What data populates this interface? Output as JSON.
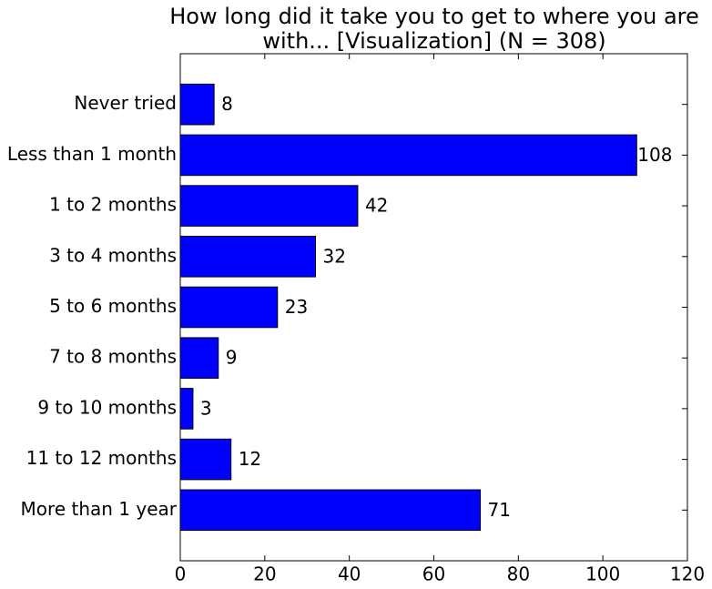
{
  "chart_data": {
    "type": "barh",
    "title": [
      "How long did it take you to get to where you are",
      "with... [Visualization] (N = 308)"
    ],
    "categories": [
      "Never tried",
      "Less than 1 month",
      "1 to 2 months",
      "3 to 4 months",
      "5 to 6 months",
      "7 to 8 months",
      "9 to 10 months",
      "11 to 12 months",
      "More than 1 year"
    ],
    "values": [
      8,
      108,
      42,
      32,
      23,
      9,
      3,
      12,
      71
    ],
    "color": "#0000ff",
    "xlim": [
      0,
      120
    ],
    "xticks": [
      0,
      20,
      40,
      60,
      80,
      100,
      120
    ],
    "grid": false
  }
}
